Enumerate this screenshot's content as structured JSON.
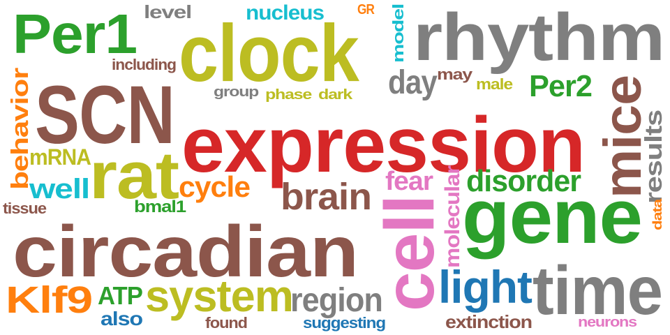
{
  "words": [
    {
      "text": "expression",
      "color": "#d62728"
    },
    {
      "text": "circadian",
      "color": "#8c564b"
    },
    {
      "text": "SCN",
      "color": "#8c564b"
    },
    {
      "text": "clock",
      "color": "#bcbd22"
    },
    {
      "text": "rhythm",
      "color": "#7f7f7f"
    },
    {
      "text": "gene",
      "color": "#2ca02c"
    },
    {
      "text": "Per1",
      "color": "#2ca02c"
    },
    {
      "text": "cell",
      "color": "#e377c2"
    },
    {
      "text": "rat",
      "color": "#bcbd22"
    },
    {
      "text": "mice",
      "color": "#8c564b"
    },
    {
      "text": "time",
      "color": "#7f7f7f"
    },
    {
      "text": "system",
      "color": "#bcbd22"
    },
    {
      "text": "light",
      "color": "#1f77b4"
    },
    {
      "text": "brain",
      "color": "#8c564b"
    },
    {
      "text": "region",
      "color": "#7f7f7f"
    },
    {
      "text": "Klf9",
      "color": "#ff7f0e"
    },
    {
      "text": "disorder",
      "color": "#2ca02c"
    },
    {
      "text": "day",
      "color": "#7f7f7f"
    },
    {
      "text": "Per2",
      "color": "#2ca02c"
    },
    {
      "text": "cycle",
      "color": "#ff7f0e"
    },
    {
      "text": "well",
      "color": "#17becf"
    },
    {
      "text": "behavior",
      "color": "#ff7f0e"
    },
    {
      "text": "mRNA",
      "color": "#bcbd22"
    },
    {
      "text": "ATP",
      "color": "#2ca02c"
    },
    {
      "text": "fear",
      "color": "#e377c2"
    },
    {
      "text": "results",
      "color": "#7f7f7f"
    },
    {
      "text": "molecular",
      "color": "#e377c2"
    },
    {
      "text": "nucleus",
      "color": "#17becf"
    },
    {
      "text": "extinction",
      "color": "#8c564b"
    },
    {
      "text": "suggesting",
      "color": "#1f77b4"
    },
    {
      "text": "also",
      "color": "#1f77b4"
    },
    {
      "text": "level",
      "color": "#7f7f7f"
    },
    {
      "text": "including",
      "color": "#8c564b"
    },
    {
      "text": "model",
      "color": "#17becf"
    },
    {
      "text": "bmal1",
      "color": "#2ca02c"
    },
    {
      "text": "may",
      "color": "#8c564b"
    },
    {
      "text": "male",
      "color": "#bcbd22"
    },
    {
      "text": "found",
      "color": "#8c564b"
    },
    {
      "text": "tissue",
      "color": "#8c564b"
    },
    {
      "text": "neurons",
      "color": "#e377c2"
    },
    {
      "text": "group",
      "color": "#7f7f7f"
    },
    {
      "text": "phase",
      "color": "#bcbd22"
    },
    {
      "text": "dark",
      "color": "#bcbd22"
    },
    {
      "text": "GR",
      "color": "#ff7f0e"
    },
    {
      "text": "data",
      "color": "#ff7f0e"
    }
  ]
}
